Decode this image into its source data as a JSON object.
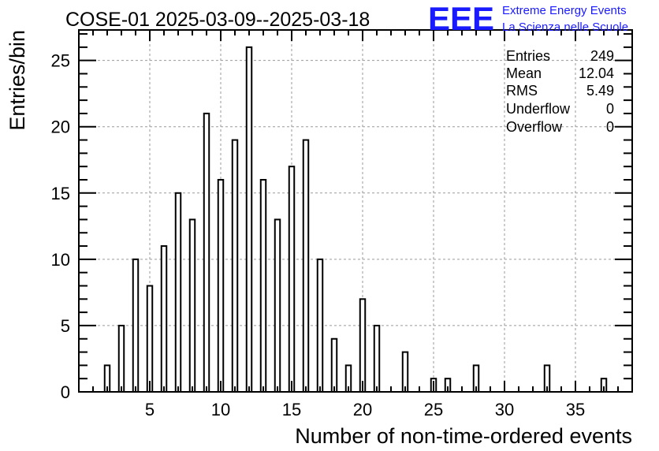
{
  "chart_data": {
    "type": "bar",
    "title": "COSE-01 2025-03-09--2025-03-18",
    "xlabel": "Number of non-time-ordered events",
    "ylabel": "Entries/bin",
    "xlim": [
      0,
      39
    ],
    "ylim": [
      0,
      27.3
    ],
    "grid": true,
    "x_ticks": [
      5,
      10,
      15,
      20,
      25,
      30,
      35
    ],
    "y_ticks": [
      0,
      5,
      10,
      15,
      20,
      25
    ],
    "bars": [
      {
        "x": 2,
        "value": 2
      },
      {
        "x": 3,
        "value": 5
      },
      {
        "x": 4,
        "value": 10
      },
      {
        "x": 5,
        "value": 8
      },
      {
        "x": 6,
        "value": 11
      },
      {
        "x": 7,
        "value": 15
      },
      {
        "x": 8,
        "value": 13
      },
      {
        "x": 9,
        "value": 21
      },
      {
        "x": 10,
        "value": 16
      },
      {
        "x": 11,
        "value": 19
      },
      {
        "x": 12,
        "value": 26
      },
      {
        "x": 13,
        "value": 16
      },
      {
        "x": 14,
        "value": 13
      },
      {
        "x": 15,
        "value": 17
      },
      {
        "x": 16,
        "value": 19
      },
      {
        "x": 17,
        "value": 10
      },
      {
        "x": 18,
        "value": 4
      },
      {
        "x": 19,
        "value": 2
      },
      {
        "x": 20,
        "value": 7
      },
      {
        "x": 21,
        "value": 5
      },
      {
        "x": 23,
        "value": 3
      },
      {
        "x": 25,
        "value": 1
      },
      {
        "x": 26,
        "value": 1
      },
      {
        "x": 28,
        "value": 2
      },
      {
        "x": 33,
        "value": 2
      },
      {
        "x": 37,
        "value": 1
      }
    ],
    "stats": [
      {
        "label": "Entries",
        "value": "249"
      },
      {
        "label": "Mean",
        "value": "12.04"
      },
      {
        "label": "RMS",
        "value": "5.49"
      },
      {
        "label": "Underflow",
        "value": "0"
      },
      {
        "label": "Overflow",
        "value": "0"
      }
    ]
  },
  "logo": {
    "mark": "EEE",
    "line1": "Extreme Energy Events",
    "line2": "La Scienza nelle Scuole",
    "color": "#1a1aff"
  },
  "colors": {
    "bar_fill": "#ffffff",
    "bar_stroke": "#000000",
    "grid": "#9a9a9a"
  }
}
